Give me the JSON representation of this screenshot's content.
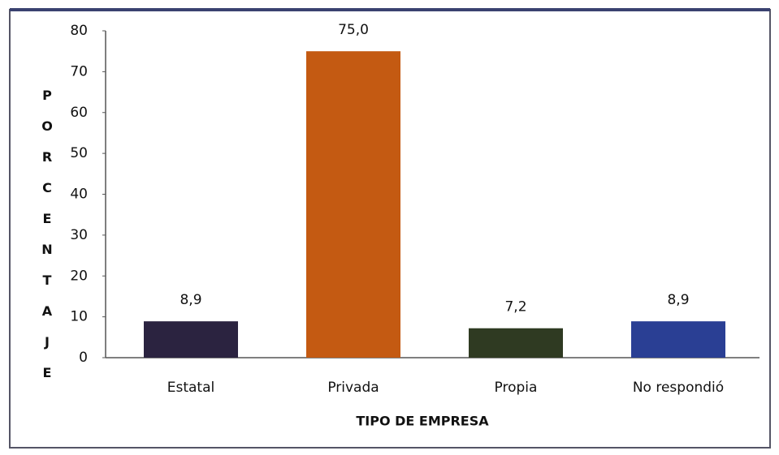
{
  "chart_data": {
    "type": "bar",
    "categories": [
      "Estatal",
      "Privada",
      "Propia",
      "No respondió"
    ],
    "values": [
      8.9,
      75.0,
      7.2,
      8.9
    ],
    "value_labels": [
      "8,9",
      "75,0",
      "7,2",
      "8,9"
    ],
    "colors": [
      "#2b2340",
      "#c45a12",
      "#2f3a22",
      "#2a3f94"
    ],
    "x_label": "TIPO DE EMPRESA",
    "y_label": "PORCENTAJE",
    "ylim": [
      0,
      80
    ],
    "yticks": [
      0,
      10,
      20,
      30,
      40,
      50,
      60,
      70,
      80
    ],
    "grid": false
  }
}
